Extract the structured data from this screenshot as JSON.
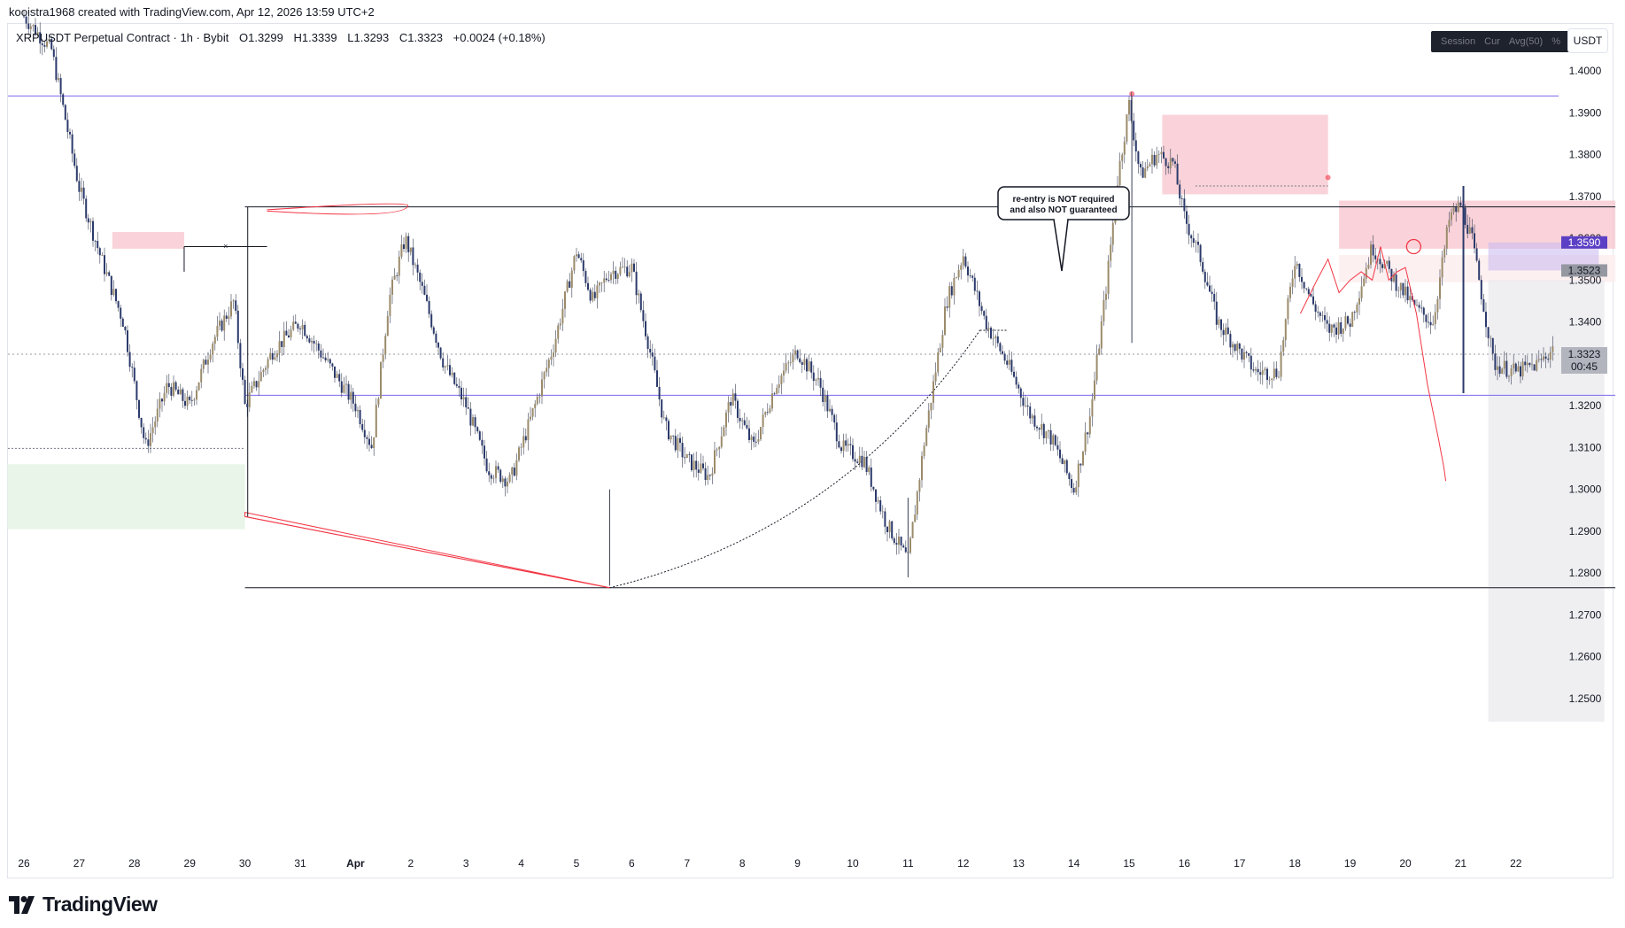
{
  "attribution": "kooistra1968 created with TradingView.com, Apr 12, 2026 13:59 UTC+2",
  "header": {
    "symbol": "XRPUSDT Perpetual Contract · 1h · Bybit",
    "open": "O1.3299",
    "high": "H1.3339",
    "low": "L1.3293",
    "close": "C1.3323",
    "change": "+0.0024 (+0.18%)"
  },
  "toolbar": {
    "session_label": "Session",
    "cur_label": "Cur",
    "avg_label": "Avg(50)",
    "percent_label": "%",
    "currency": "USDT"
  },
  "footer": {
    "brand": "TradingView"
  },
  "annotation": {
    "line1": "re-entry is NOT required",
    "line2": "and also NOT guaranteed"
  },
  "colors": {
    "resistance_line": "#7b68ee",
    "supply_zone": "#f8c8cf",
    "demand_zone": "#e6f4e6",
    "projection": "#f23645",
    "price_tag_purple": "#5b3fc4",
    "price_tag_gray": "#9598a1",
    "current_price_tag": "#b2b5be"
  },
  "chart_data": {
    "type": "candlestick",
    "timeframe": "1h",
    "ylim": [
      1.242,
      1.415
    ],
    "y_ticks": [
      "1.4000",
      "1.3900",
      "1.3800",
      "1.3700",
      "1.3600",
      "1.3500",
      "1.3400",
      "1.3300",
      "1.3200",
      "1.3100",
      "1.3000",
      "1.2900",
      "1.2800",
      "1.2700",
      "1.2600",
      "1.2500"
    ],
    "x_ticks": [
      "26",
      "27",
      "28",
      "29",
      "30",
      "31",
      "Apr",
      "2",
      "3",
      "4",
      "5",
      "6",
      "7",
      "8",
      "9",
      "10",
      "11",
      "12",
      "13",
      "14",
      "15",
      "16",
      "17",
      "18",
      "19",
      "20",
      "21",
      "22"
    ],
    "price_labels": {
      "upper_level": "1.3590",
      "mid_level": "1.3523",
      "current": "1.3323",
      "countdown": "00:45"
    },
    "levels": {
      "upper_resistance": 1.394,
      "range_high": 1.3675,
      "lower_support": 1.3225,
      "range_low": 1.2765
    },
    "candle_path": [
      [
        0,
        1.413
      ],
      [
        0.5,
        1.405
      ],
      [
        1,
        1.372
      ],
      [
        1.4,
        1.355
      ],
      [
        1.8,
        1.34
      ],
      [
        2.2,
        1.31
      ],
      [
        2.6,
        1.325
      ],
      [
        3,
        1.32
      ],
      [
        3.4,
        1.335
      ],
      [
        3.8,
        1.345
      ],
      [
        4,
        1.32
      ],
      [
        4.5,
        1.333
      ],
      [
        5,
        1.34
      ],
      [
        5.5,
        1.33
      ],
      [
        6,
        1.32
      ],
      [
        6.3,
        1.31
      ],
      [
        6.6,
        1.345
      ],
      [
        6.9,
        1.36
      ],
      [
        7.2,
        1.348
      ],
      [
        7.6,
        1.33
      ],
      [
        8,
        1.32
      ],
      [
        8.4,
        1.305
      ],
      [
        8.8,
        1.302
      ],
      [
        9.2,
        1.318
      ],
      [
        9.6,
        1.335
      ],
      [
        10,
        1.357
      ],
      [
        10.3,
        1.345
      ],
      [
        10.6,
        1.352
      ],
      [
        11,
        1.353
      ],
      [
        11.3,
        1.335
      ],
      [
        11.6,
        1.315
      ],
      [
        12,
        1.307
      ],
      [
        12.4,
        1.303
      ],
      [
        12.8,
        1.322
      ],
      [
        13.2,
        1.31
      ],
      [
        13.6,
        1.325
      ],
      [
        14,
        1.333
      ],
      [
        14.4,
        1.325
      ],
      [
        14.8,
        1.31
      ],
      [
        15.2,
        1.307
      ],
      [
        15.6,
        1.292
      ],
      [
        16,
        1.283
      ],
      [
        16.3,
        1.312
      ],
      [
        16.7,
        1.345
      ],
      [
        17,
        1.356
      ],
      [
        17.4,
        1.34
      ],
      [
        17.8,
        1.33
      ],
      [
        18.2,
        1.318
      ],
      [
        18.6,
        1.312
      ],
      [
        19,
        1.3
      ],
      [
        19.3,
        1.318
      ],
      [
        19.6,
        1.35
      ],
      [
        19.8,
        1.375
      ],
      [
        20,
        1.392
      ],
      [
        20.2,
        1.375
      ],
      [
        20.5,
        1.38
      ],
      [
        20.8,
        1.378
      ],
      [
        21,
        1.365
      ],
      [
        21.3,
        1.355
      ],
      [
        21.6,
        1.34
      ],
      [
        22,
        1.333
      ],
      [
        22.3,
        1.328
      ],
      [
        22.7,
        1.328
      ],
      [
        23,
        1.355
      ],
      [
        23.3,
        1.345
      ],
      [
        23.6,
        1.338
      ],
      [
        24,
        1.34
      ],
      [
        24.4,
        1.358
      ],
      [
        24.8,
        1.35
      ],
      [
        25.2,
        1.343
      ],
      [
        25.5,
        1.34
      ],
      [
        25.8,
        1.365
      ],
      [
        26,
        1.368
      ],
      [
        26.2,
        1.36
      ],
      [
        26.4,
        1.345
      ],
      [
        26.6,
        1.33
      ],
      [
        27,
        1.328
      ],
      [
        27.4,
        1.33
      ],
      [
        27.7,
        1.334
      ]
    ],
    "zones": [
      {
        "kind": "supply",
        "x0": 1.6,
        "x1": 2.9,
        "y0": 1.3615,
        "y1": 1.3575
      },
      {
        "kind": "demand",
        "x0": -0.3,
        "x1": 4.0,
        "y0": 1.306,
        "y1": 1.2905
      },
      {
        "kind": "supply",
        "x0": 20.6,
        "x1": 23.6,
        "y0": 1.3895,
        "y1": 1.3705
      },
      {
        "kind": "supply",
        "x0": 23.8,
        "x1": 28.8,
        "y0": 1.369,
        "y1": 1.3575
      },
      {
        "kind": "supply_light",
        "x0": 23.8,
        "x1": 28.8,
        "y0": 1.356,
        "y1": 1.3495
      },
      {
        "kind": "short_target",
        "x0": 26.5,
        "x1": 28.6,
        "y0": 1.35,
        "y1": 1.2445
      }
    ],
    "projection_path": [
      [
        23.1,
        1.342
      ],
      [
        23.4,
        1.35
      ],
      [
        23.6,
        1.355
      ],
      [
        23.8,
        1.347
      ],
      [
        24.0,
        1.35
      ],
      [
        24.2,
        1.352
      ],
      [
        24.4,
        1.35
      ],
      [
        24.55,
        1.358
      ],
      [
        24.7,
        1.35
      ],
      [
        24.85,
        1.352
      ],
      [
        25.0,
        1.353
      ],
      [
        25.2,
        1.342
      ],
      [
        25.4,
        1.325
      ],
      [
        25.6,
        1.312
      ],
      [
        25.7,
        1.305
      ],
      [
        25.73,
        1.302
      ]
    ]
  }
}
